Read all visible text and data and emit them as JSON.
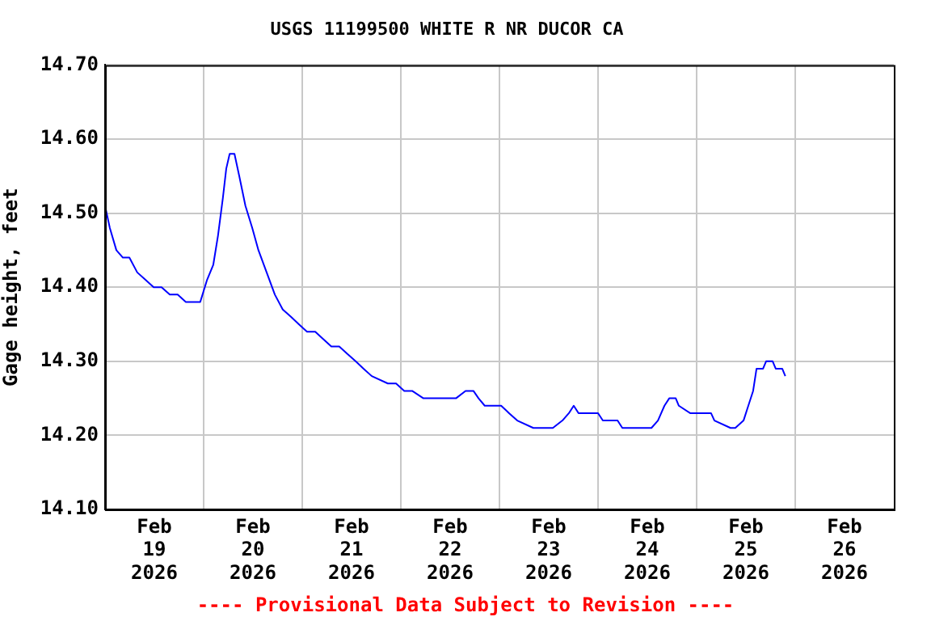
{
  "chart_data": {
    "type": "line",
    "title": "USGS 11199500 WHITE R NR DUCOR CA",
    "ylabel": "Gage height, feet",
    "annotations": [
      "---- Provisional Data Subject to Revision ----"
    ],
    "x": [
      "2026-02-19T00:00",
      "2026-02-19T01:10",
      "2026-02-19T02:45",
      "2026-02-19T04:20",
      "2026-02-19T05:55",
      "2026-02-19T07:50",
      "2026-02-19T09:50",
      "2026-02-19T11:50",
      "2026-02-19T13:45",
      "2026-02-19T15:45",
      "2026-02-19T17:40",
      "2026-02-19T19:40",
      "2026-02-19T23:10",
      "2026-02-20T00:50",
      "2026-02-20T02:20",
      "2026-02-20T03:30",
      "2026-02-20T04:40",
      "2026-02-20T05:30",
      "2026-02-20T06:20",
      "2026-02-20T07:30",
      "2026-02-20T08:40",
      "2026-02-20T10:10",
      "2026-02-20T11:50",
      "2026-02-20T13:20",
      "2026-02-20T15:20",
      "2026-02-20T17:20",
      "2026-02-20T19:15",
      "2026-02-20T21:15",
      "2026-02-20T23:10",
      "2026-02-21T01:10",
      "2026-02-21T03:10",
      "2026-02-21T05:05",
      "2026-02-21T07:05",
      "2026-02-21T09:00",
      "2026-02-21T11:00",
      "2026-02-21T13:00",
      "2026-02-21T14:55",
      "2026-02-21T16:55",
      "2026-02-21T20:50",
      "2026-02-21T22:50",
      "2026-02-22T00:50",
      "2026-02-22T02:45",
      "2026-02-22T05:30",
      "2026-02-22T10:40",
      "2026-02-22T13:25",
      "2026-02-22T15:45",
      "2026-02-22T17:40",
      "2026-02-22T18:55",
      "2026-02-22T20:25",
      "2026-02-23T00:25",
      "2026-02-23T02:20",
      "2026-02-23T04:20",
      "2026-02-23T08:15",
      "2026-02-23T13:00",
      "2026-02-23T15:20",
      "2026-02-23T16:55",
      "2026-02-23T18:05",
      "2026-02-23T19:15",
      "2026-02-24T00:00",
      "2026-02-24T01:10",
      "2026-02-24T04:45",
      "2026-02-24T05:55",
      "2026-02-24T13:00",
      "2026-02-24T14:35",
      "2026-02-24T16:10",
      "2026-02-24T17:20",
      "2026-02-24T18:55",
      "2026-02-24T19:40",
      "2026-02-24T22:25",
      "2026-02-25T03:30",
      "2026-02-25T04:20",
      "2026-02-25T08:15",
      "2026-02-25T09:25",
      "2026-02-25T11:25",
      "2026-02-25T12:35",
      "2026-02-25T13:45",
      "2026-02-25T14:35",
      "2026-02-25T16:10",
      "2026-02-25T16:55",
      "2026-02-25T18:30",
      "2026-02-25T19:15",
      "2026-02-25T20:50",
      "2026-02-25T21:35"
    ],
    "series": [
      {
        "color": "#0000ff",
        "values": [
          14.51,
          14.48,
          14.45,
          14.44,
          14.44,
          14.42,
          14.41,
          14.4,
          14.4,
          14.39,
          14.39,
          14.38,
          14.38,
          14.41,
          14.43,
          14.47,
          14.52,
          14.56,
          14.58,
          14.58,
          14.55,
          14.51,
          14.48,
          14.45,
          14.42,
          14.39,
          14.37,
          14.36,
          14.35,
          14.34,
          14.34,
          14.33,
          14.32,
          14.32,
          14.31,
          14.3,
          14.29,
          14.28,
          14.27,
          14.27,
          14.26,
          14.26,
          14.25,
          14.25,
          14.25,
          14.26,
          14.26,
          14.25,
          14.24,
          14.24,
          14.23,
          14.22,
          14.21,
          14.21,
          14.22,
          14.23,
          14.24,
          14.23,
          14.23,
          14.22,
          14.22,
          14.21,
          14.21,
          14.22,
          14.24,
          14.25,
          14.25,
          14.24,
          14.23,
          14.23,
          14.22,
          14.21,
          14.21,
          14.22,
          14.24,
          14.26,
          14.29,
          14.29,
          14.3,
          14.3,
          14.29,
          14.29,
          14.28
        ]
      }
    ],
    "xlim": [
      "2026-02-19T00:00",
      "2026-02-27T00:00"
    ],
    "xticks": [
      {
        "value": "2026-02-20T00:00",
        "label": null
      },
      {
        "value": "2026-02-21T00:00",
        "label": null
      },
      {
        "value": "2026-02-22T00:00",
        "label": null
      },
      {
        "value": "2026-02-23T00:00",
        "label": null
      },
      {
        "value": "2026-02-24T00:00",
        "label": null
      },
      {
        "value": "2026-02-25T00:00",
        "label": null
      },
      {
        "value": "2026-02-26T00:00",
        "label": null
      },
      {
        "value": "2026-02-19T12:00",
        "label": "Feb 19 2026"
      },
      {
        "value": "2026-02-20T12:00",
        "label": "Feb 20 2026"
      },
      {
        "value": "2026-02-21T12:00",
        "label": "Feb 21 2026"
      },
      {
        "value": "2026-02-22T12:00",
        "label": "Feb 22 2026"
      },
      {
        "value": "2026-02-23T12:00",
        "label": "Feb 23 2026"
      },
      {
        "value": "2026-02-24T12:00",
        "label": "Feb 24 2026"
      },
      {
        "value": "2026-02-25T12:00",
        "label": "Feb 25 2026"
      },
      {
        "value": "2026-02-26T12:00",
        "label": "Feb 26 2026"
      }
    ],
    "ylim": [
      14.1,
      14.7
    ],
    "yticks": [
      {
        "value": 14.1,
        "label": "14.10"
      },
      {
        "value": 14.2,
        "label": "14.20"
      },
      {
        "value": 14.3,
        "label": "14.30"
      },
      {
        "value": 14.4,
        "label": "14.40"
      },
      {
        "value": 14.5,
        "label": "14.50"
      },
      {
        "value": 14.6,
        "label": "14.60"
      },
      {
        "value": 14.7,
        "label": "14.70"
      }
    ],
    "grid": true,
    "line_style": "solid",
    "marker": "none",
    "legend": false
  }
}
